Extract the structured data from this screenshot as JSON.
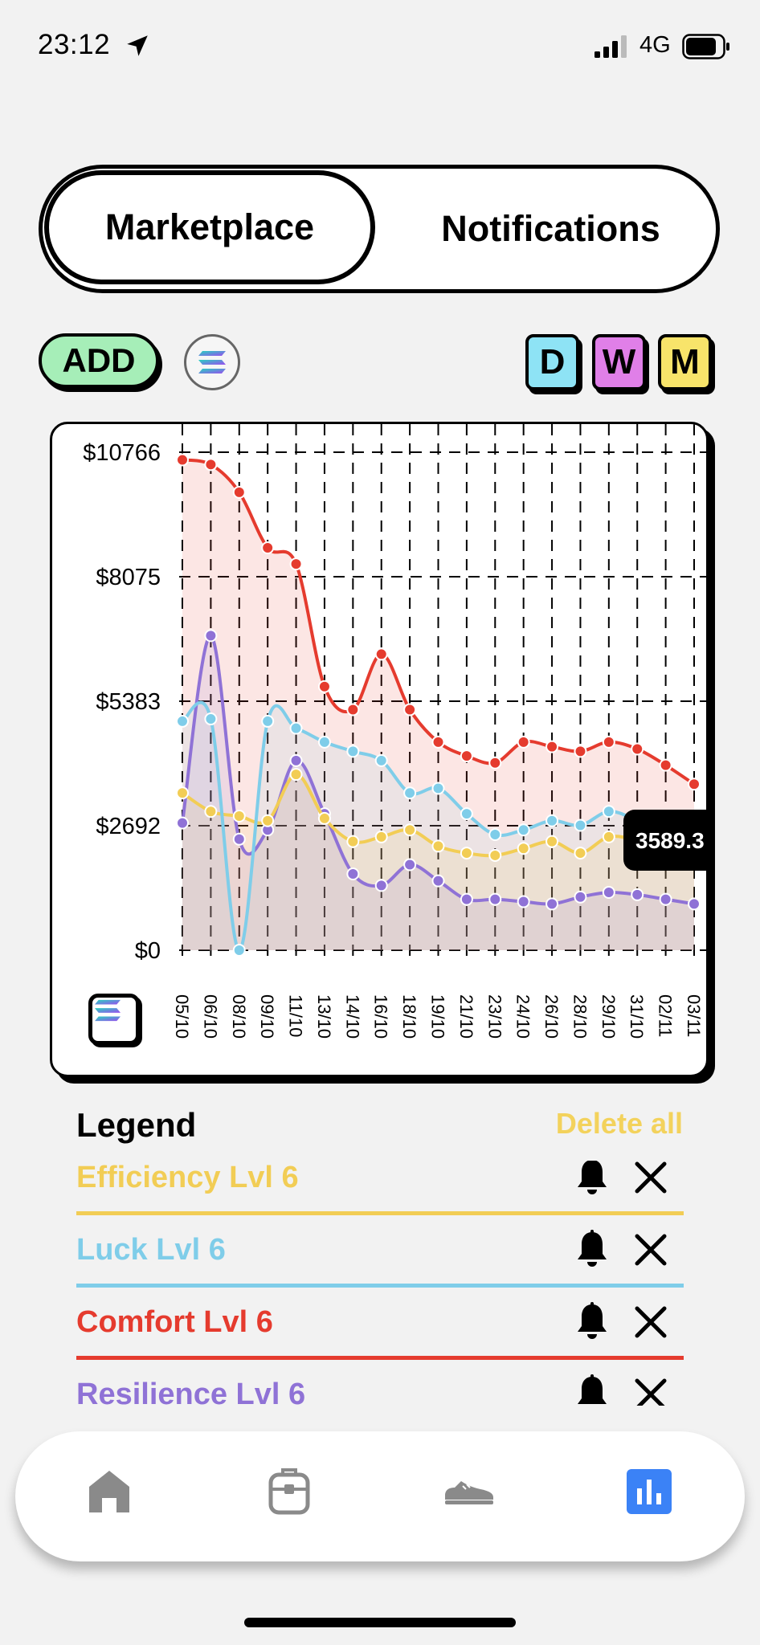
{
  "status_bar": {
    "time": "23:12",
    "network": "4G"
  },
  "tabs": [
    {
      "label": "Marketplace",
      "active": true
    },
    {
      "label": "Notifications",
      "active": false
    }
  ],
  "toolbar": {
    "add_label": "ADD",
    "periods": [
      {
        "label": "D",
        "color": "#8ee3f5"
      },
      {
        "label": "W",
        "color": "#e07fe8"
      },
      {
        "label": "M",
        "color": "#f8e46a"
      }
    ]
  },
  "chart_data": {
    "type": "area",
    "x": [
      "05/10",
      "06/10",
      "08/10",
      "09/10",
      "11/10",
      "13/10",
      "14/10",
      "16/10",
      "18/10",
      "19/10",
      "21/10",
      "23/10",
      "24/10",
      "26/10",
      "28/10",
      "29/10",
      "31/10",
      "02/11",
      "03/11"
    ],
    "y_ticks": [
      "$10766",
      "$8075",
      "$5383",
      "$2692",
      "$0"
    ],
    "ylim": [
      0,
      10766
    ],
    "grid": true,
    "series": [
      {
        "name": "Comfort Lvl 6",
        "color": "#e53b2e",
        "fill": "rgba(229,59,46,0.13)",
        "values": [
          10600,
          10500,
          9900,
          8700,
          8350,
          5700,
          5200,
          6400,
          5200,
          4500,
          4200,
          4050,
          4500,
          4400,
          4300,
          4500,
          4350,
          4000,
          3589.3
        ]
      },
      {
        "name": "Luck Lvl 6",
        "color": "#7fcde9",
        "fill": "rgba(127,205,233,0.12)",
        "values": [
          4950,
          5000,
          0,
          4950,
          4800,
          4500,
          4300,
          4100,
          3400,
          3500,
          2950,
          2500,
          2600,
          2800,
          2700,
          3000,
          2800,
          2500,
          2200
        ]
      },
      {
        "name": "Efficiency Lvl 6",
        "color": "#f2cd55",
        "fill": "rgba(242,205,85,0.12)",
        "values": [
          3400,
          3000,
          2900,
          2800,
          3800,
          2850,
          2350,
          2450,
          2600,
          2250,
          2100,
          2050,
          2200,
          2350,
          2100,
          2450,
          2350,
          2000,
          1900
        ]
      },
      {
        "name": "Resilience Lvl 6",
        "color": "#8f72d6",
        "fill": "rgba(143,114,214,0.12)",
        "values": [
          2750,
          6800,
          2400,
          2600,
          4100,
          2950,
          1650,
          1400,
          1850,
          1500,
          1100,
          1100,
          1050,
          1000,
          1150,
          1250,
          1200,
          1100,
          1000
        ]
      }
    ],
    "tooltip": "3589.3"
  },
  "legend": {
    "title": "Legend",
    "delete_all": "Delete all",
    "items": [
      {
        "name": "Efficiency Lvl 6",
        "color": "#f2cd55"
      },
      {
        "name": "Luck Lvl 6",
        "color": "#7fcde9"
      },
      {
        "name": "Comfort Lvl 6",
        "color": "#e53b2e"
      },
      {
        "name": "Resilience Lvl 6",
        "color": "#8f72d6"
      }
    ]
  },
  "nav": {
    "items": [
      {
        "icon": "home-icon",
        "active": false
      },
      {
        "icon": "backpack-icon",
        "active": false
      },
      {
        "icon": "sneaker-icon",
        "active": false
      },
      {
        "icon": "bar-chart-icon",
        "active": true
      }
    ],
    "active_color": "#3b82f6",
    "inactive_color": "#8a8a8a"
  }
}
